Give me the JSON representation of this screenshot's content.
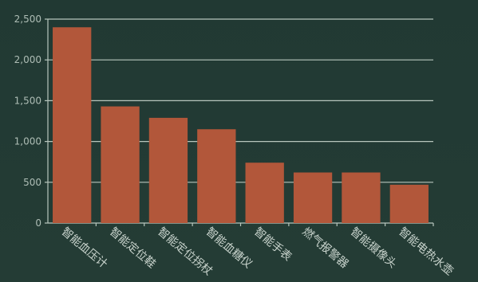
{
  "chart_data": {
    "type": "bar",
    "categories": [
      "智能血压计",
      "智能定位鞋",
      "智能定位拐杖",
      "智能血糖仪",
      "智能手表",
      "燃气报警器",
      "智能摄像头",
      "智能电热水壶"
    ],
    "values": [
      2400,
      1430,
      1290,
      1150,
      740,
      620,
      620,
      470
    ],
    "yticks": [
      "0",
      "500",
      "1,000",
      "1,500",
      "2,000",
      "2,500"
    ],
    "ylim": [
      0,
      2500
    ],
    "grid": true,
    "colors": {
      "bar": "#b2573a",
      "grid": "#b7c6bd",
      "background": "#223a33"
    }
  }
}
